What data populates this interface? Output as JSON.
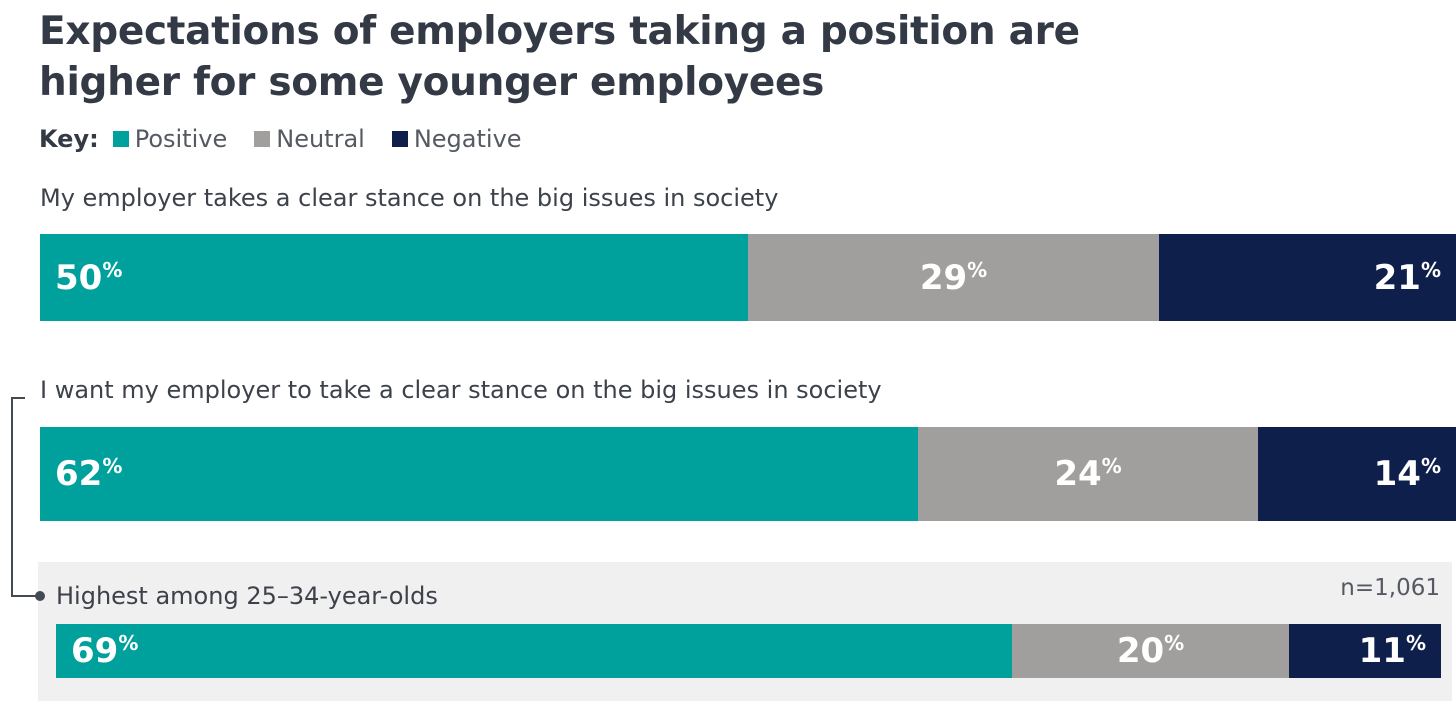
{
  "header": {
    "title": "Expectations of employers taking a position are higher for some younger employees"
  },
  "key": {
    "label": "Key:",
    "items": [
      {
        "name": "Positive",
        "color": "#00a19d"
      },
      {
        "name": "Neutral",
        "color": "#a09f9d"
      },
      {
        "name": "Negative",
        "color": "#0e1f4b"
      }
    ]
  },
  "note": "n=1,061",
  "chart_data": {
    "type": "bar",
    "stacked": true,
    "orientation": "horizontal",
    "title": "Expectations of employers taking a position are higher for some younger employees",
    "unit": "%",
    "series_names": [
      "Positive",
      "Neutral",
      "Negative"
    ],
    "series_colors": [
      "#00a19d",
      "#a09f9d",
      "#0e1f4b"
    ],
    "categories": [
      "My employer takes a clear stance on the big issues in society",
      "I want my employer to take a clear stance on the big issues in society",
      "Highest among 25–34-year-olds"
    ],
    "rows": [
      {
        "label": "My employer takes a clear stance on the big issues in society",
        "values": [
          50,
          29,
          21
        ]
      },
      {
        "label": "I want my employer to take a clear stance on the big issues in society",
        "values": [
          62,
          24,
          14
        ]
      },
      {
        "label": "Highest among 25–34-year-olds",
        "values": [
          69,
          20,
          11
        ]
      }
    ],
    "xlim": [
      0,
      100
    ]
  }
}
